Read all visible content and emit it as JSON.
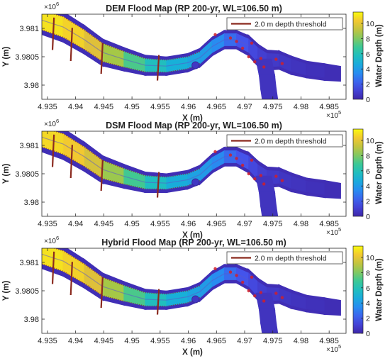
{
  "chart_data": [
    {
      "type": "heatmap",
      "title": "DEM Flood Map (RP 200-yr, WL=106.50 m)",
      "xlabel": "X (m)",
      "ylabel": "Y (m)",
      "x_exponent_label": "×10",
      "x_exponent": "5",
      "y_exponent_label": "×10",
      "y_exponent": "6",
      "xlim": [
        4.934,
        4.988
      ],
      "ylim": [
        3.97975,
        3.98125
      ],
      "x_ticks": [
        4.935,
        4.94,
        4.945,
        4.95,
        4.955,
        4.96,
        4.965,
        4.97,
        4.975,
        4.98,
        4.985
      ],
      "x_tick_labels": [
        "4.935",
        "4.94",
        "4.945",
        "4.95",
        "4.955",
        "4.96",
        "4.965",
        "4.97",
        "4.975",
        "4.98",
        "4.985"
      ],
      "y_ticks": [
        3.98,
        3.9805,
        3.981
      ],
      "y_tick_labels": [
        "3.98",
        "3.9805",
        "3.981"
      ],
      "legend": {
        "label": "2.0 m depth threshold",
        "color": "#8b2a1f",
        "placement": "top-right"
      },
      "colorbar": {
        "label": "Water Depth (m)",
        "ticks": [
          "0",
          "2",
          "4",
          "6",
          "8",
          "10"
        ],
        "range": [
          0,
          11.5
        ],
        "colormap": "parula"
      },
      "grid": false
    },
    {
      "type": "heatmap",
      "title": "DSM Flood Map (RP 200-yr, WL=106.50 m)",
      "xlabel": "X (m)",
      "ylabel": "Y (m)",
      "x_exponent_label": "×10",
      "x_exponent": "5",
      "y_exponent_label": "×10",
      "y_exponent": "6",
      "xlim": [
        4.934,
        4.988
      ],
      "ylim": [
        3.97975,
        3.98125
      ],
      "x_ticks": [
        4.935,
        4.94,
        4.945,
        4.95,
        4.955,
        4.96,
        4.965,
        4.97,
        4.975,
        4.98,
        4.985
      ],
      "x_tick_labels": [
        "4.935",
        "4.94",
        "4.945",
        "4.95",
        "4.955",
        "4.96",
        "4.965",
        "4.97",
        "4.975",
        "4.98",
        "4.985"
      ],
      "y_ticks": [
        3.98,
        3.9805,
        3.981
      ],
      "y_tick_labels": [
        "3.98",
        "3.9805",
        "3.981"
      ],
      "legend": {
        "label": "2.0 m depth threshold",
        "color": "#8b2a1f",
        "placement": "top-right"
      },
      "colorbar": {
        "label": "Water Depth (m)",
        "ticks": [
          "0",
          "2",
          "4",
          "6",
          "8",
          "10"
        ],
        "range": [
          0,
          11.5
        ],
        "colormap": "parula"
      },
      "grid": false
    },
    {
      "type": "heatmap",
      "title": "Hybrid Flood Map (RP 200-yr, WL=106.50 m)",
      "xlabel": "X (m)",
      "ylabel": "Y (m)",
      "x_exponent_label": "×10",
      "x_exponent": "5",
      "y_exponent_label": "×10",
      "y_exponent": "6",
      "xlim": [
        4.934,
        4.988
      ],
      "ylim": [
        3.97975,
        3.98125
      ],
      "x_ticks": [
        4.935,
        4.94,
        4.945,
        4.95,
        4.955,
        4.96,
        4.965,
        4.97,
        4.975,
        4.98,
        4.985
      ],
      "x_tick_labels": [
        "4.935",
        "4.94",
        "4.945",
        "4.95",
        "4.955",
        "4.96",
        "4.965",
        "4.97",
        "4.975",
        "4.98",
        "4.985"
      ],
      "y_ticks": [
        3.98,
        3.9805,
        3.981
      ],
      "y_tick_labels": [
        "3.98",
        "3.9805",
        "3.981"
      ],
      "legend": {
        "label": "2.0 m depth threshold",
        "color": "#8b2a1f",
        "placement": "top-right"
      },
      "colorbar": {
        "label": "Water Depth (m)",
        "ticks": [
          "0",
          "2",
          "4",
          "6",
          "8",
          "10"
        ],
        "range": [
          0,
          11.5
        ],
        "colormap": "parula"
      },
      "grid": false
    }
  ]
}
